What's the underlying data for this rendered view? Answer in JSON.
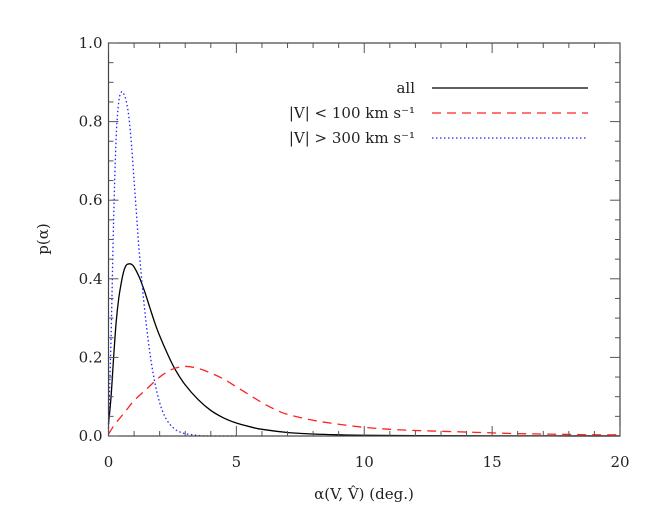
{
  "chart_data": {
    "type": "line",
    "title": "",
    "xlabel": "α(V, V̂) (deg.)",
    "ylabel": "p(α)",
    "xlim": [
      0,
      20
    ],
    "ylim": [
      0,
      1.0
    ],
    "xticks": [
      0,
      5,
      10,
      15,
      20
    ],
    "xtick_labels": [
      "0",
      "5",
      "10",
      "15",
      "20"
    ],
    "yticks": [
      0.0,
      0.2,
      0.4,
      0.6,
      0.8,
      1.0
    ],
    "ytick_labels": [
      "0.0",
      "0.2",
      "0.4",
      "0.6",
      "0.8",
      "1.0"
    ],
    "grid": false,
    "legend_position": "upper right",
    "series": [
      {
        "name": "all",
        "legend_label": "all",
        "color": "#000000",
        "style": "solid",
        "x": [
          0,
          0.1,
          0.2,
          0.3,
          0.4,
          0.5,
          0.6,
          0.7,
          0.8,
          0.9,
          1.0,
          1.2,
          1.4,
          1.6,
          1.8,
          2.0,
          2.3,
          2.6,
          3.0,
          3.5,
          4.0,
          4.5,
          5.0,
          5.5,
          6.0,
          7.0,
          8.0,
          9.0,
          10.0,
          12.0,
          14.0,
          16.0,
          18.0,
          20.0
        ],
        "values": [
          0.03,
          0.1,
          0.2,
          0.29,
          0.35,
          0.39,
          0.42,
          0.435,
          0.438,
          0.437,
          0.43,
          0.405,
          0.37,
          0.33,
          0.29,
          0.255,
          0.21,
          0.17,
          0.13,
          0.093,
          0.065,
          0.046,
          0.033,
          0.024,
          0.017,
          0.009,
          0.005,
          0.003,
          0.002,
          0.001,
          0.0005,
          0.0003,
          0.0002,
          0.0001
        ]
      },
      {
        "name": "|V| < 100 km s^-1",
        "legend_label": "|V| < 100 km s⁻¹",
        "color": "#ff2020",
        "style": "dashed",
        "x": [
          0,
          0.25,
          0.5,
          0.75,
          1.0,
          1.5,
          2.0,
          2.5,
          3.0,
          3.5,
          4.0,
          4.5,
          5.0,
          5.5,
          6.0,
          6.5,
          7.0,
          8.0,
          9.0,
          10.0,
          11.0,
          12.0,
          13.0,
          14.0,
          15.0,
          16.0,
          17.0,
          18.0,
          19.0,
          20.0
        ],
        "values": [
          0.005,
          0.03,
          0.05,
          0.07,
          0.09,
          0.12,
          0.15,
          0.17,
          0.177,
          0.172,
          0.16,
          0.145,
          0.125,
          0.105,
          0.085,
          0.068,
          0.055,
          0.04,
          0.03,
          0.022,
          0.017,
          0.014,
          0.012,
          0.01,
          0.008,
          0.006,
          0.005,
          0.004,
          0.003,
          0.003
        ]
      },
      {
        "name": "|V| > 300 km s^-1",
        "legend_label": "|V| > 300 km s⁻¹",
        "color": "#2020ff",
        "style": "dotted",
        "x": [
          0,
          0.1,
          0.2,
          0.3,
          0.4,
          0.5,
          0.6,
          0.7,
          0.8,
          0.9,
          1.0,
          1.1,
          1.2,
          1.4,
          1.6,
          1.8,
          2.0,
          2.2,
          2.4,
          2.6,
          2.8,
          3.0,
          3.3,
          3.6,
          4.0,
          5.0
        ],
        "values": [
          0.02,
          0.25,
          0.55,
          0.76,
          0.85,
          0.875,
          0.87,
          0.85,
          0.81,
          0.74,
          0.65,
          0.56,
          0.47,
          0.33,
          0.22,
          0.14,
          0.085,
          0.05,
          0.03,
          0.017,
          0.01,
          0.006,
          0.003,
          0.001,
          0.0,
          0.0
        ]
      }
    ]
  }
}
